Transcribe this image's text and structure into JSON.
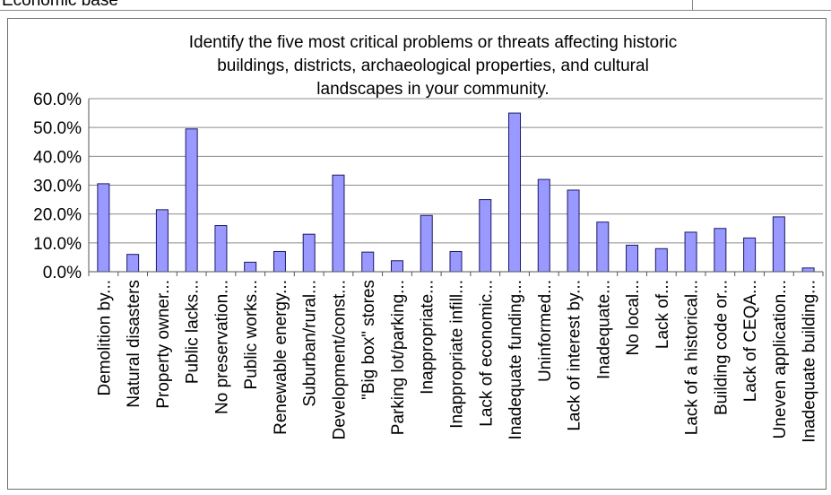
{
  "cut_text": "Economic base",
  "chart_data": {
    "type": "bar",
    "title_lines": [
      "Identify the five most critical problems or threats affecting historic",
      "buildings, districts, archaeological properties, and cultural",
      "landscapes in your community."
    ],
    "categories": [
      "Demolition by...",
      "Natural disasters",
      "Property owner...",
      "Public lacks...",
      "No preservation...",
      "Public works...",
      "Renewable energy...",
      "Suburban/rural...",
      "Development/const...",
      "\"Big box\" stores",
      "Parking lot/parking...",
      "Inappropriate...",
      "Inappropriate infill...",
      "Lack of economic...",
      "Inadequate funding...",
      "Uninformed...",
      "Lack of interest by...",
      "Inadequate...",
      "No local...",
      "Lack of...",
      "Lack of a historical...",
      "Building code or...",
      "Lack of CEQA...",
      "Uneven application...",
      "Inadequate building..."
    ],
    "values": [
      30.5,
      6.0,
      21.5,
      49.5,
      16.0,
      3.3,
      7.0,
      13.0,
      33.5,
      6.8,
      3.8,
      19.5,
      7.0,
      25.0,
      55.0,
      32.0,
      28.3,
      17.2,
      9.2,
      8.0,
      13.7,
      15.0,
      11.7,
      19.0,
      1.3
    ],
    "y_ticks": [
      "60.0%",
      "50.0%",
      "40.0%",
      "30.0%",
      "20.0%",
      "10.0%",
      "0.0%"
    ],
    "ylim": [
      0,
      60
    ],
    "grid": true,
    "colors": {
      "bar_fill": "#9999ff",
      "bar_stroke": "#1a1a66",
      "grid": "#8c8c8c",
      "axis": "#555555"
    }
  }
}
